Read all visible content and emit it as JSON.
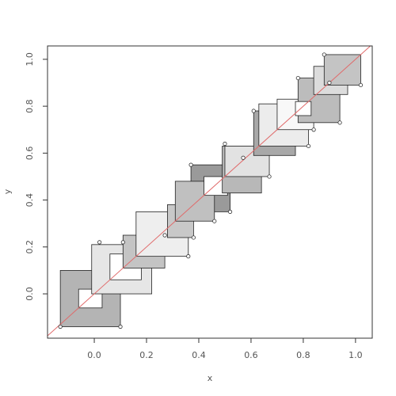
{
  "chart_data": {
    "type": "rects",
    "x_label": "x",
    "y_label": "y",
    "xlim": [
      -0.179,
      1.064
    ],
    "ylim": [
      -0.189,
      1.057
    ],
    "xticks": [
      {
        "value": 0,
        "label": "0.0"
      },
      {
        "value": 0.2,
        "label": "0.2"
      },
      {
        "value": 0.4,
        "label": "0.4"
      },
      {
        "value": 0.6,
        "label": "0.6"
      },
      {
        "value": 0.8,
        "label": "0.8"
      },
      {
        "value": 1,
        "label": "1.0"
      }
    ],
    "yticks": [
      {
        "value": 0,
        "label": "0.0"
      },
      {
        "value": 0.2,
        "label": "0.2"
      },
      {
        "value": 0.4,
        "label": "0.4"
      },
      {
        "value": 0.6,
        "label": "0.6"
      },
      {
        "value": 0.8,
        "label": "0.8"
      },
      {
        "value": 1,
        "label": "1.0"
      }
    ],
    "rects": {
      "x0": [
        -0.13,
        -0.06,
        -0.01,
        0.06,
        0.11,
        0.16,
        0.28,
        0.37,
        0.31,
        0.42,
        0.49,
        0.5,
        0.61,
        0.63,
        0.7,
        0.78,
        0.84,
        0.88,
        0.77
      ],
      "x1": [
        0.1,
        0.03,
        0.22,
        0.18,
        0.27,
        0.36,
        0.38,
        0.52,
        0.46,
        0.51,
        0.64,
        0.67,
        0.77,
        0.82,
        0.84,
        0.94,
        0.97,
        1.02,
        0.83
      ],
      "y0": [
        -0.14,
        -0.06,
        0.0,
        0.06,
        0.11,
        0.16,
        0.24,
        0.35,
        0.31,
        0.42,
        0.43,
        0.5,
        0.59,
        0.63,
        0.7,
        0.73,
        0.85,
        0.89,
        0.76
      ],
      "y1": [
        0.1,
        0.02,
        0.21,
        0.17,
        0.25,
        0.35,
        0.38,
        0.55,
        0.48,
        0.5,
        0.63,
        0.63,
        0.78,
        0.81,
        0.83,
        0.92,
        0.97,
        1.02,
        0.82
      ],
      "colors": [
        "#b4b4b4",
        "#ffffff",
        "#e6e6e6",
        "#ffffff",
        "#c4c4c4",
        "#eeeeee",
        "#c8c8c8",
        "#9a9a9a",
        "#c0c0c0",
        "#ffffff",
        "#b8b8b8",
        "#e2e2e2",
        "#a8a8a8",
        "#ececec",
        "#f8f8f8",
        "#bcbcbc",
        "#dcdcdc",
        "#c4c4c4",
        "#ffffff"
      ]
    },
    "points": {
      "x": [
        -0.13,
        0.1,
        0.02,
        0.11,
        0.27,
        0.36,
        0.38,
        0.37,
        0.46,
        0.52,
        0.5,
        0.67,
        0.61,
        0.82,
        0.84,
        0.78,
        0.94,
        0.88,
        1.02,
        0.57,
        0.9
      ],
      "y": [
        -0.14,
        -0.14,
        0.22,
        0.22,
        0.25,
        0.16,
        0.24,
        0.55,
        0.31,
        0.35,
        0.64,
        0.5,
        0.78,
        0.63,
        0.7,
        0.92,
        0.73,
        1.02,
        0.89,
        0.58,
        0.9
      ]
    },
    "abline_color": "#e06a6a"
  }
}
